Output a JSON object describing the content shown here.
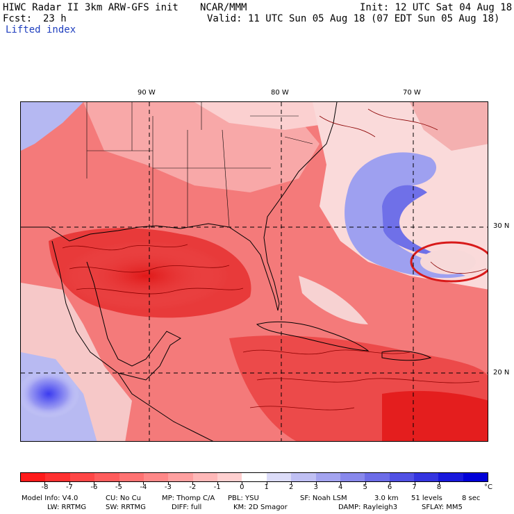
{
  "header": {
    "model_title": "HIWC Radar II 3km ARW-GFS init",
    "org": "NCAR/MMM",
    "init": "Init: 12 UTC Sat 04 Aug 18",
    "fcst_label": "Fcst:",
    "fcst_value": "23 h",
    "valid": "Valid: 11 UTC Sun 05 Aug 18 (07 EDT Sun 05 Aug 18)",
    "field_name": "Lifted index"
  },
  "map": {
    "lon_labels": [
      "90 W",
      "80 W",
      "70 W"
    ],
    "lat_labels": [
      "30 N",
      "20 N"
    ],
    "colors": {
      "background_warm": "#f08080",
      "land_border": "#000000",
      "contour": "#8b0000",
      "grid_line": "#000000"
    }
  },
  "colorbar": {
    "tick_labels": [
      "-8",
      "-7",
      "-6",
      "-5",
      "-4",
      "-3",
      "-2",
      "-1",
      "0",
      "1",
      "2",
      "3",
      "4",
      "5",
      "6",
      "7",
      "8"
    ],
    "unit": "°C",
    "colors": [
      "#ff1a1a",
      "#ff3030",
      "#ff4646",
      "#ff5c5c",
      "#ff7272",
      "#ff8888",
      "#ffa0a0",
      "#ffb8b8",
      "#ffd0d0",
      "#ffffff",
      "#dcdcf8",
      "#c0c0f4",
      "#a4a4f0",
      "#8888ec",
      "#6c6ce8",
      "#5050e4",
      "#3434e0",
      "#1818dc",
      "#0000d8"
    ]
  },
  "footer": {
    "line1": [
      "Model Info: V4.0",
      "CU: No Cu",
      "MP: Thomp C/A",
      "PBL: YSU",
      "SF: Noah LSM",
      "3.0 km",
      "51 levels",
      "8 sec"
    ],
    "line2": [
      "LW: RRTMG",
      "SW: RRTMG",
      "DIFF: full",
      "KM: 2D Smagor",
      "DAMP: Rayleigh3",
      "SFLAY: MM5"
    ]
  }
}
